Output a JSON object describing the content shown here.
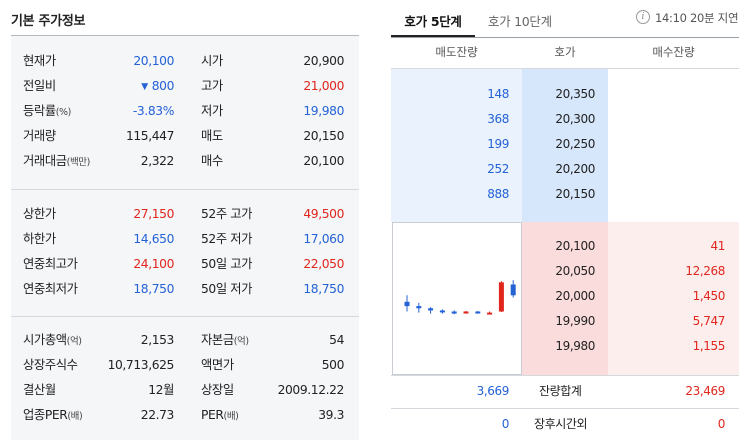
{
  "title": "기본 주가정보",
  "stock_info": {
    "section1": [
      {
        "l1": "현재가",
        "l1s": "",
        "v1": "20,100",
        "c1": "blue",
        "l2": "시가",
        "l2s": "",
        "v2": "20,900",
        "c2": ""
      },
      {
        "l1": "전일비",
        "l1s": "",
        "v1": "800",
        "c1": "blue",
        "tri": "▼",
        "l2": "고가",
        "l2s": "",
        "v2": "21,000",
        "c2": "red"
      },
      {
        "l1": "등락률",
        "l1s": "(%)",
        "v1": "-3.83%",
        "c1": "blue",
        "l2": "저가",
        "l2s": "",
        "v2": "19,980",
        "c2": "blue"
      },
      {
        "l1": "거래량",
        "l1s": "",
        "v1": "115,447",
        "c1": "",
        "l2": "매도",
        "l2s": "",
        "v2": "20,150",
        "c2": ""
      },
      {
        "l1": "거래대금",
        "l1s": "(백만)",
        "v1": "2,322",
        "c1": "",
        "l2": "매수",
        "l2s": "",
        "v2": "20,100",
        "c2": ""
      }
    ],
    "section2": [
      {
        "l1": "상한가",
        "l1s": "",
        "v1": "27,150",
        "c1": "red",
        "l2": "52주 고가",
        "l2s": "",
        "v2": "49,500",
        "c2": "red"
      },
      {
        "l1": "하한가",
        "l1s": "",
        "v1": "14,650",
        "c1": "blue",
        "l2": "52주 저가",
        "l2s": "",
        "v2": "17,060",
        "c2": "blue"
      },
      {
        "l1": "연중최고가",
        "l1s": "",
        "v1": "24,100",
        "c1": "red",
        "l2": "50일 고가",
        "l2s": "",
        "v2": "22,050",
        "c2": "red"
      },
      {
        "l1": "연중최저가",
        "l1s": "",
        "v1": "18,750",
        "c1": "blue",
        "l2": "50일 저가",
        "l2s": "",
        "v2": "18,750",
        "c2": "blue"
      }
    ],
    "section3": [
      {
        "l1": "시가총액",
        "l1s": "(억)",
        "v1": "2,153",
        "c1": "",
        "l2": "자본금",
        "l2s": "(억)",
        "v2": "54",
        "c2": ""
      },
      {
        "l1": "상장주식수",
        "l1s": "",
        "v1": "10,713,625",
        "c1": "",
        "l2": "액면가",
        "l2s": "",
        "v2": "500",
        "c2": ""
      },
      {
        "l1": "결산월",
        "l1s": "",
        "v1": "12월",
        "c1": "",
        "l2": "상장일",
        "l2s": "",
        "v2": "2009.12.22",
        "c2": ""
      },
      {
        "l1": "업종PER",
        "l1s": "(배)",
        "v1": "22.73",
        "c1": "",
        "l2": "PER",
        "l2s": "(배)",
        "v2": "39.3",
        "c2": ""
      }
    ]
  },
  "orderbook": {
    "tabs": [
      "호가 5단계",
      "호가 10단계"
    ],
    "info_icon": "info-icon",
    "delay_text": "14:10 20분 지연",
    "columns": [
      "매도잔량",
      "호가",
      "매수잔량"
    ],
    "asks": [
      {
        "qty": "148",
        "price": "20,350"
      },
      {
        "qty": "368",
        "price": "20,300"
      },
      {
        "qty": "199",
        "price": "20,250"
      },
      {
        "qty": "252",
        "price": "20,200"
      },
      {
        "qty": "888",
        "price": "20,150"
      }
    ],
    "bids": [
      {
        "price": "20,100",
        "qty": "41"
      },
      {
        "price": "20,050",
        "qty": "12,268"
      },
      {
        "price": "20,000",
        "qty": "1,450"
      },
      {
        "price": "19,990",
        "qty": "5,747"
      },
      {
        "price": "19,980",
        "qty": "1,155"
      }
    ],
    "total": {
      "sell": "3,669",
      "label": "잔량합계",
      "buy": "23,469"
    },
    "after_hours": {
      "sell": "0",
      "label": "장후시간외",
      "buy": "0"
    }
  },
  "colors": {
    "red": "#e0261d",
    "blue": "#2462d6",
    "sell_bg": "#eaf2fd",
    "buy_bg": "#fdeeee"
  },
  "mini_chart": {
    "type": "candlestick",
    "candles": [
      {
        "open": 20100,
        "close": 20060,
        "high": 20160,
        "low": 20010,
        "color": "blue"
      },
      {
        "open": 20060,
        "close": 20040,
        "high": 20090,
        "low": 20000,
        "color": "blue"
      },
      {
        "open": 20040,
        "close": 20020,
        "high": 20050,
        "low": 19990,
        "color": "blue"
      },
      {
        "open": 20020,
        "close": 20010,
        "high": 20030,
        "low": 19990,
        "color": "blue"
      },
      {
        "open": 20010,
        "close": 20000,
        "high": 20020,
        "low": 19985,
        "color": "blue"
      },
      {
        "open": 20000,
        "close": 20010,
        "high": 20015,
        "low": 19990,
        "color": "red"
      },
      {
        "open": 20010,
        "close": 20000,
        "high": 20015,
        "low": 19990,
        "color": "blue"
      },
      {
        "open": 20000,
        "close": 20000,
        "high": 20010,
        "low": 19990,
        "color": "red"
      },
      {
        "open": 20010,
        "close": 20280,
        "high": 20290,
        "low": 20005,
        "color": "red"
      },
      {
        "open": 20260,
        "close": 20160,
        "high": 20300,
        "low": 20140,
        "color": "blue"
      }
    ]
  }
}
